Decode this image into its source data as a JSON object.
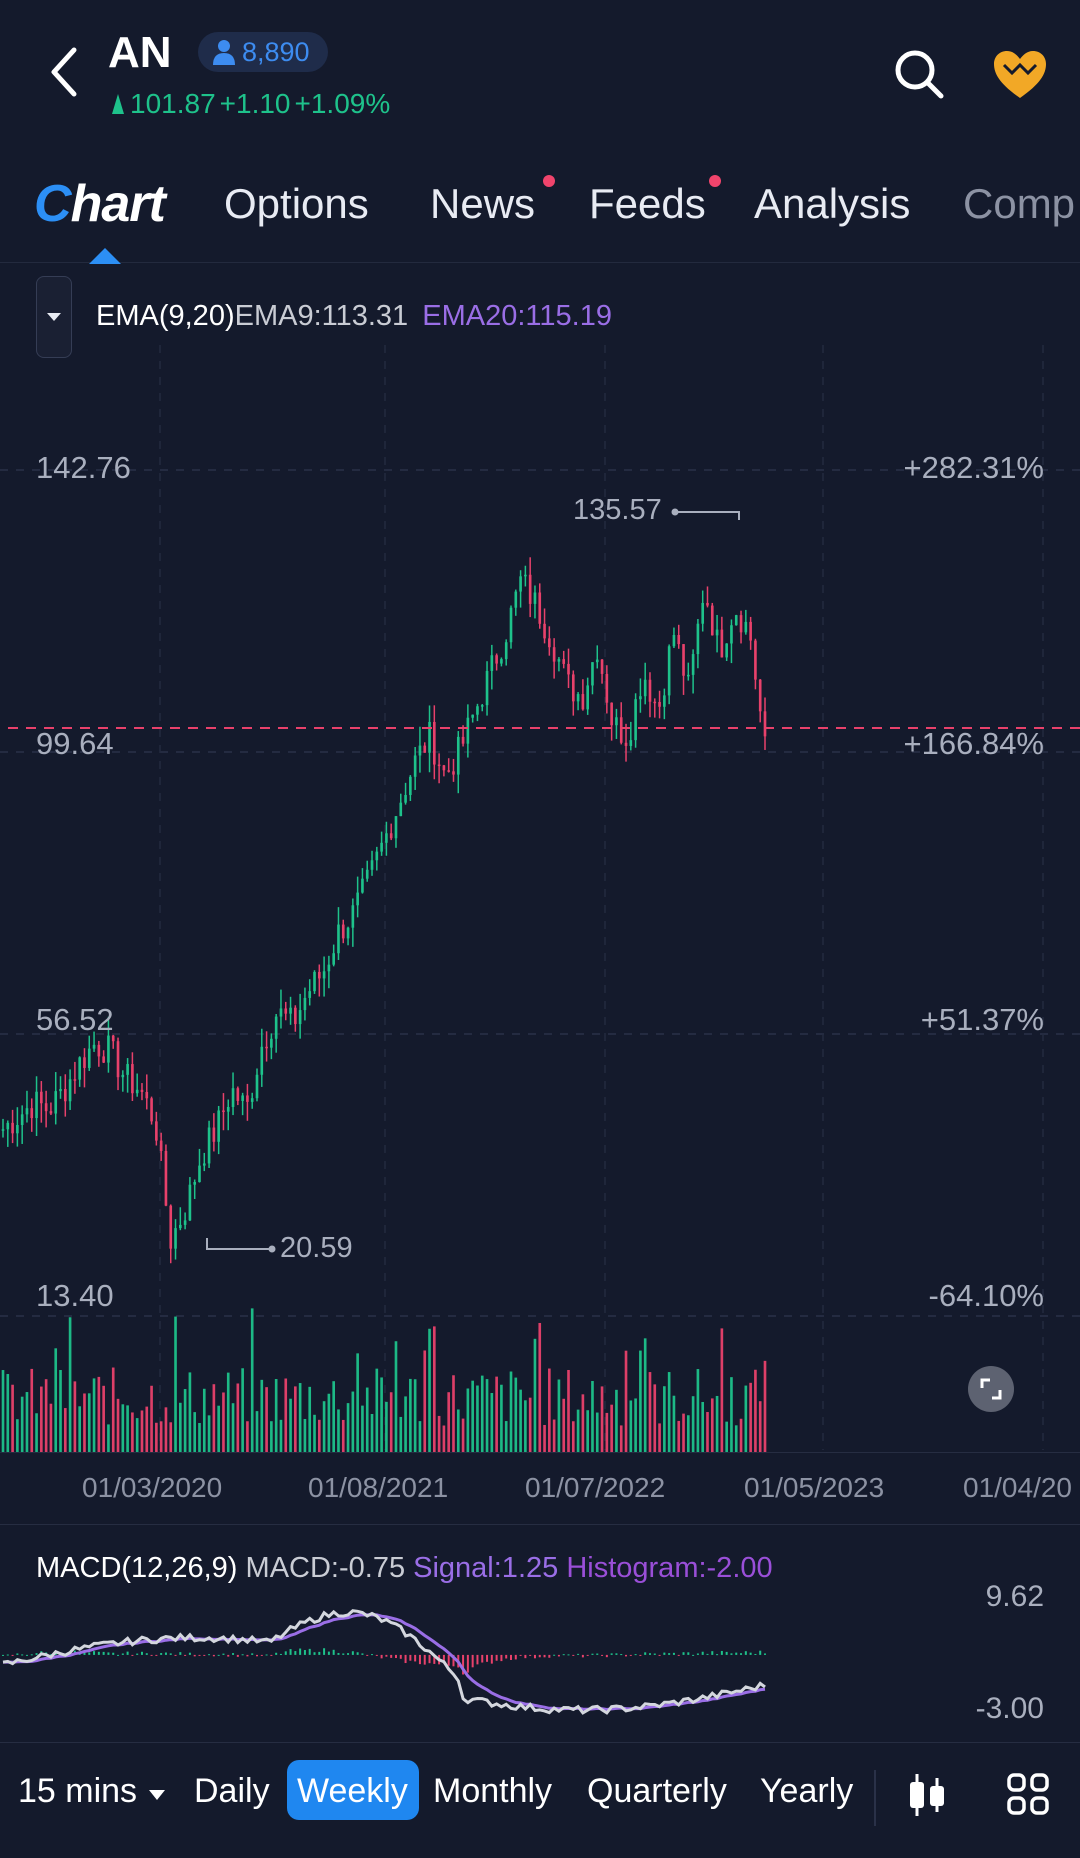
{
  "header": {
    "ticker": "AN",
    "followers": "8,890",
    "price": "101.87",
    "change": "+1.10",
    "change_pct": "+1.09%"
  },
  "tabs": [
    {
      "label": "Chart",
      "active": true
    },
    {
      "label": "Options",
      "dot": false
    },
    {
      "label": "News",
      "dot": true
    },
    {
      "label": "Feeds",
      "dot": true
    },
    {
      "label": "Analysis",
      "dot": false
    },
    {
      "label": "Comp",
      "dot": false
    }
  ],
  "indicator": {
    "name": "EMA(9,20)",
    "ema9": "EMA9:113.31",
    "ema20": "EMA20:115.19"
  },
  "price_axis": {
    "left": [
      "142.76",
      "99.64",
      "56.52",
      "13.40"
    ],
    "right": [
      "+282.31%",
      "+166.84%",
      "+51.37%",
      "-64.10%"
    ]
  },
  "markers": {
    "high": "135.57",
    "low": "20.59"
  },
  "date_axis": [
    "01/03/2020",
    "01/08/2021",
    "01/07/2022",
    "01/05/2023",
    "01/04/20"
  ],
  "macd": {
    "name": "MACD(12,26,9)",
    "macd": "MACD:-0.75",
    "signal": "Signal:1.25",
    "histogram": "Histogram:-2.00",
    "axis": [
      "9.62",
      "-3.00"
    ]
  },
  "periods": {
    "interval": "15 mins",
    "items": [
      "Daily",
      "Weekly",
      "Monthly",
      "Quarterly",
      "Yearly"
    ],
    "selected": "Weekly"
  },
  "colors": {
    "up": "#1ec28b",
    "down": "#e8416b",
    "ema9": "#d4d7de",
    "ema20": "#9a6ee6",
    "accent": "#1f87f0",
    "heart": "#f2a826"
  },
  "chart_data": {
    "type": "candlestick",
    "y_axis": {
      "min": 13.4,
      "max": 142.76,
      "ticks": [
        142.76,
        99.64,
        56.52,
        13.4
      ]
    },
    "x_ticks": [
      "01/03/2020",
      "01/08/2021",
      "01/07/2022",
      "01/05/2023"
    ],
    "last_price": 101.87,
    "high": 135.57,
    "low": 20.59,
    "close_path": [
      42,
      44,
      46,
      45,
      48,
      52,
      55,
      54,
      50,
      48,
      43,
      25,
      30,
      38,
      42,
      48,
      45,
      55,
      60,
      58,
      63,
      66,
      72,
      75,
      80,
      86,
      92,
      98,
      102,
      96,
      100,
      106,
      112,
      118,
      126,
      122,
      117,
      110,
      108,
      116,
      104,
      102,
      112,
      106,
      118,
      109,
      125,
      115,
      122,
      118,
      100
    ]
  }
}
